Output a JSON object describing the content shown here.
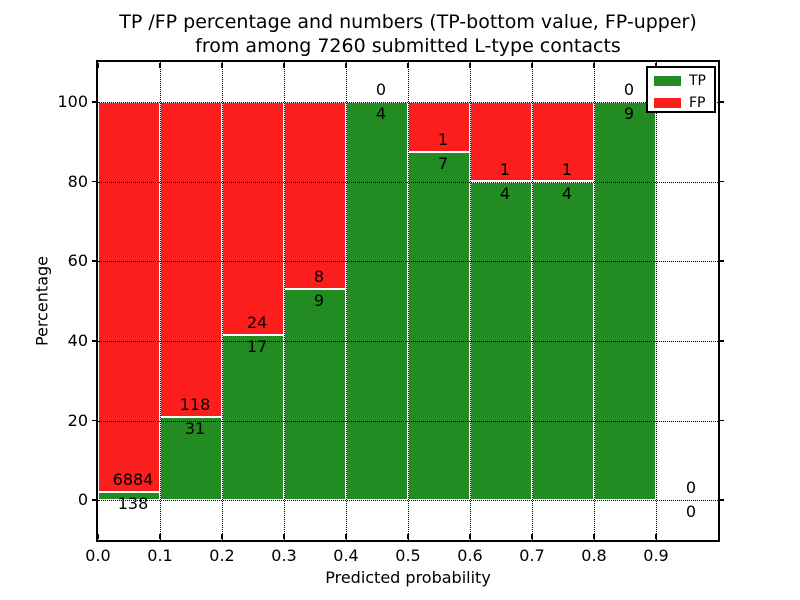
{
  "chart_data": {
    "type": "bar",
    "stacked": true,
    "title_line1": "TP /FP percentage and numbers (TP-bottom value, FP-upper)",
    "title_line2": "from among 7260 submitted L-type contacts",
    "total_contacts": 7260,
    "xlabel": "Predicted probability",
    "ylabel": "Percentage",
    "xlim": [
      0.0,
      1.0
    ],
    "ylim": [
      -10,
      110
    ],
    "x_ticks": [
      "0.0",
      "0.1",
      "0.2",
      "0.3",
      "0.4",
      "0.5",
      "0.6",
      "0.7",
      "0.8",
      "0.9"
    ],
    "y_ticks": [
      "0",
      "20",
      "40",
      "60",
      "80",
      "100"
    ],
    "y_tick_values": [
      0,
      20,
      40,
      60,
      80,
      100
    ],
    "grid": "dotted",
    "legend_position": "upper-right",
    "legend": [
      {
        "name": "TP",
        "color": "#228b22"
      },
      {
        "name": "FP",
        "color": "#fc1d1d"
      }
    ],
    "colors": {
      "tp": "#228b22",
      "fp": "#fc1d1d",
      "bar_edge": "#ffffff",
      "grid": "#000000"
    },
    "series": [
      {
        "name": "TP",
        "counts": [
          138,
          31,
          17,
          9,
          4,
          7,
          4,
          4,
          9,
          0
        ]
      },
      {
        "name": "FP",
        "counts": [
          6884,
          118,
          24,
          8,
          0,
          1,
          1,
          1,
          0,
          0
        ]
      }
    ],
    "bins": [
      {
        "x0": 0.0,
        "x1": 0.1,
        "tp": 138,
        "fp": 6884
      },
      {
        "x0": 0.1,
        "x1": 0.2,
        "tp": 31,
        "fp": 118
      },
      {
        "x0": 0.2,
        "x1": 0.3,
        "tp": 17,
        "fp": 24
      },
      {
        "x0": 0.3,
        "x1": 0.4,
        "tp": 9,
        "fp": 8
      },
      {
        "x0": 0.4,
        "x1": 0.5,
        "tp": 4,
        "fp": 0
      },
      {
        "x0": 0.5,
        "x1": 0.6,
        "tp": 7,
        "fp": 1
      },
      {
        "x0": 0.6,
        "x1": 0.7,
        "tp": 4,
        "fp": 1
      },
      {
        "x0": 0.7,
        "x1": 0.8,
        "tp": 4,
        "fp": 1
      },
      {
        "x0": 0.8,
        "x1": 0.9,
        "tp": 9,
        "fp": 0
      },
      {
        "x0": 0.9,
        "x1": 1.0,
        "tp": 0,
        "fp": 0
      }
    ]
  }
}
